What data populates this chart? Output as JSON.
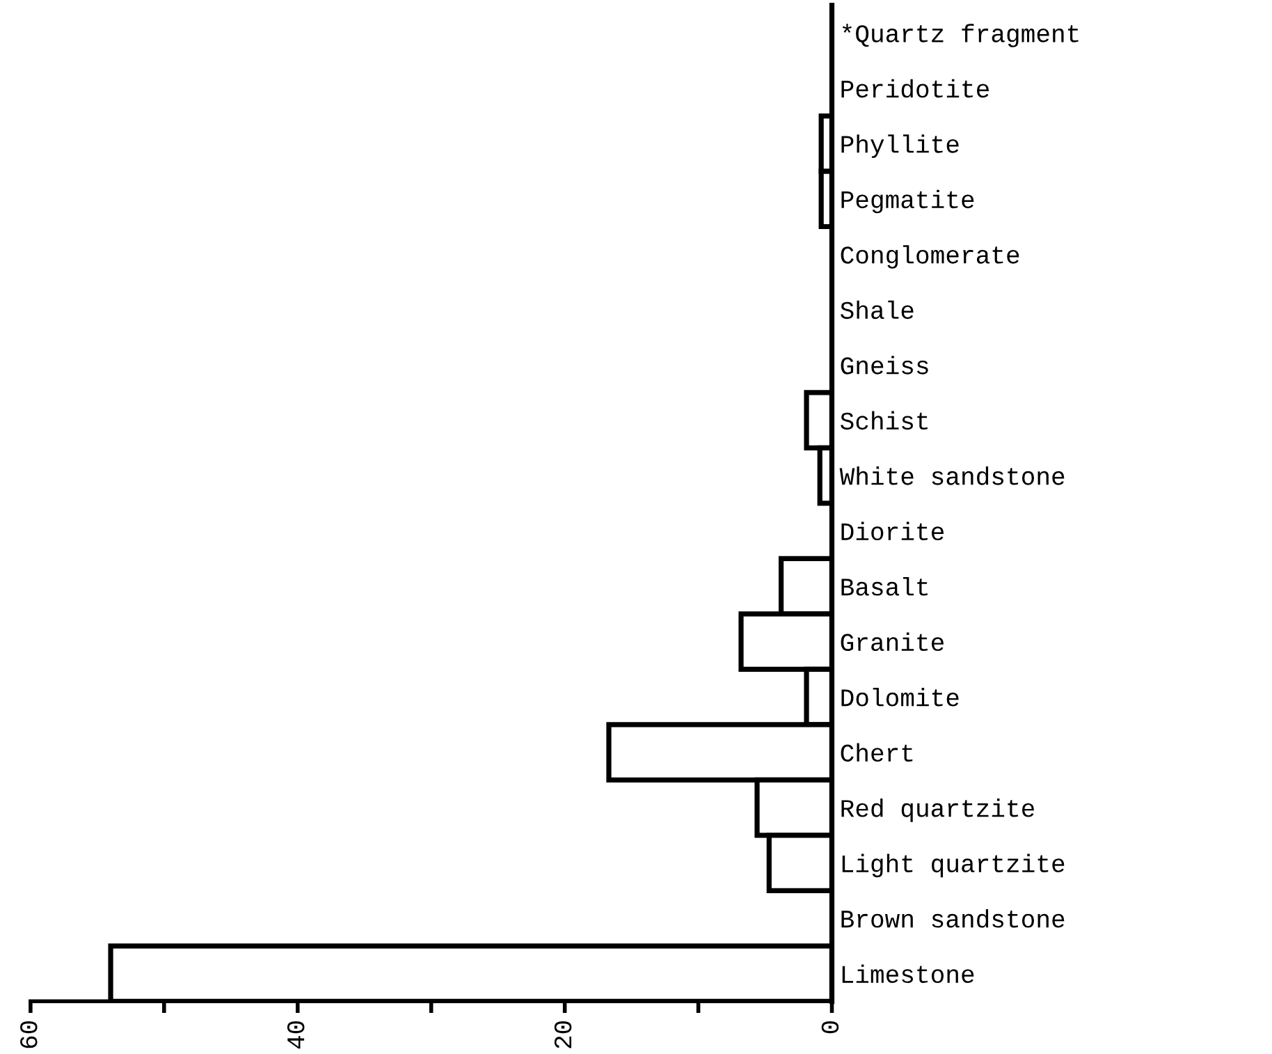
{
  "chart_data": {
    "type": "bar",
    "orientation": "horizontal",
    "categories": [
      "*Quartz fragment",
      "Peridotite",
      "Phyllite",
      "Pegmatite",
      "Conglomerate",
      "Shale",
      "Gneiss",
      "Schist",
      "White sandstone",
      "Diorite",
      "Basalt",
      "Granite",
      "Dolomite",
      "Chert",
      "Red quartzite",
      "Light quartzite",
      "Brown sandstone",
      "Limestone"
    ],
    "values": [
      0,
      0,
      0.8,
      0.8,
      0,
      0,
      0,
      1.9,
      0.9,
      0,
      3.8,
      6.8,
      1.9,
      16.7,
      5.6,
      4.7,
      0,
      54
    ],
    "color": "#ffffff",
    "xlim": [
      60,
      0
    ],
    "xticks": [
      0,
      {
        "value": 10,
        "label": null
      },
      20,
      {
        "value": 30,
        "label": null
      },
      40,
      {
        "value": 50,
        "label": null
      },
      60
    ],
    "grid": false
  }
}
